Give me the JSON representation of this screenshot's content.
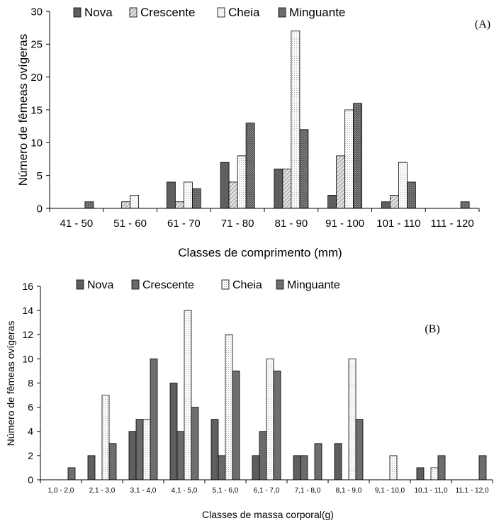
{
  "chart_data": [
    {
      "type": "bar",
      "panel_label": "(A)",
      "xlabel": "Classes de comprimento  (mm)",
      "ylabel": "Número de fêmeas ovígeras",
      "ylim": [
        0,
        30
      ],
      "yticks": [
        "0",
        "5",
        "10",
        "15",
        "20",
        "25",
        "30"
      ],
      "grid": false,
      "legend_position": "top",
      "categories": [
        "41 - 50",
        "51 - 60",
        "61 - 70",
        "71 - 80",
        "81 - 90",
        "91 - 100",
        "101 - 110",
        "111 - 120"
      ],
      "series": [
        {
          "name": "Nova",
          "color": "#5f5f5f",
          "pattern": "solid",
          "values": [
            0,
            0,
            4,
            7,
            6,
            2,
            1,
            0
          ]
        },
        {
          "name": "Crescente",
          "color": "#c8c8c8",
          "pattern": "diagonal",
          "values": [
            0,
            1,
            1,
            4,
            6,
            8,
            2,
            0
          ]
        },
        {
          "name": "Cheia",
          "color": "#f2f2f2",
          "pattern": "dots",
          "values": [
            0,
            2,
            4,
            8,
            27,
            15,
            7,
            0
          ]
        },
        {
          "name": "Minguante",
          "color": "#7a7a7a",
          "pattern": "crosshatch",
          "values": [
            1,
            0,
            3,
            13,
            12,
            16,
            4,
            1
          ]
        }
      ]
    },
    {
      "type": "bar",
      "panel_label": "(B)",
      "xlabel": "Classes de massa corporal(g)",
      "ylabel": "Número de fêmeas ovígeras",
      "ylim": [
        0,
        16
      ],
      "yticks": [
        "0",
        "2",
        "4",
        "6",
        "8",
        "10",
        "12",
        "14",
        "16"
      ],
      "grid": false,
      "legend_position": "top",
      "categories": [
        "1,0 - 2,0",
        "2,1 - 3,0",
        "3,1 - 4,0",
        "4,1 - 5,0",
        "5,1 - 6,0",
        "6,1 - 7,0",
        "7,1 - 8,0",
        "8,1 - 9,0",
        "9,1 - 10,0",
        "10,1 - 11,0",
        "11,1 - 12,0"
      ],
      "series": [
        {
          "name": "Nova",
          "color": "#5f5f5f",
          "pattern": "solid",
          "values": [
            0,
            2,
            4,
            8,
            5,
            2,
            2,
            3,
            0,
            1,
            0
          ]
        },
        {
          "name": "Crescente",
          "color": "#6a6a6a",
          "pattern": "solid",
          "values": [
            0,
            0,
            5,
            4,
            2,
            4,
            2,
            0,
            0,
            0,
            0
          ]
        },
        {
          "name": "Cheia",
          "color": "#f2f2f2",
          "pattern": "dots",
          "values": [
            0,
            7,
            5,
            14,
            12,
            10,
            0,
            10,
            2,
            1,
            0
          ]
        },
        {
          "name": "Minguante",
          "color": "#6e6e6e",
          "pattern": "solid",
          "values": [
            1,
            3,
            10,
            6,
            9,
            9,
            3,
            5,
            0,
            2,
            2
          ]
        }
      ]
    }
  ]
}
